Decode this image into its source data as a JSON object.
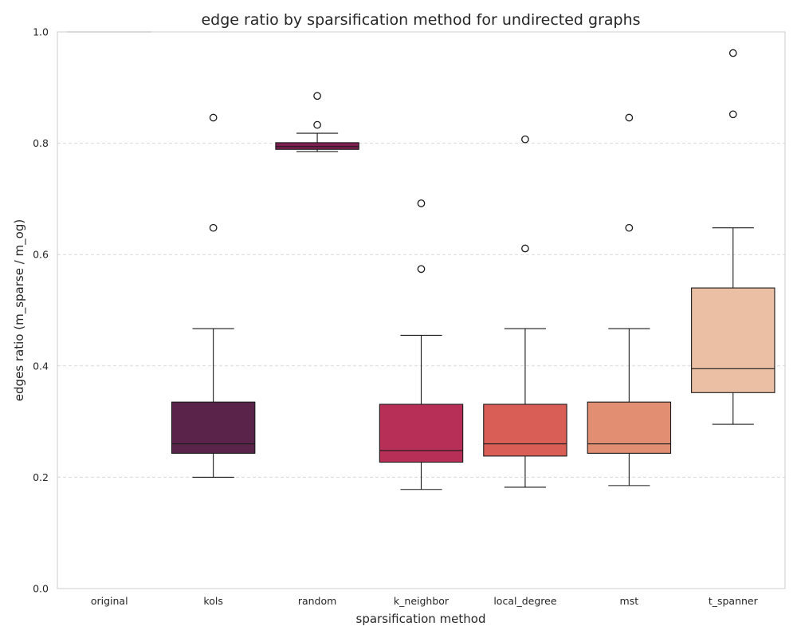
{
  "chart_data": {
    "type": "box",
    "title": "edge ratio by sparsification method for undirected graphs",
    "xlabel": "sparsification method",
    "ylabel": "edges ratio (m_sparse / m_og)",
    "ylim": [
      0,
      1
    ],
    "yticks": [
      "0.0",
      "0.2",
      "0.4",
      "0.6",
      "0.8",
      "1.0"
    ],
    "grid": "horizontal dashed",
    "categories": [
      "original",
      "kols",
      "random",
      "k_neighbor",
      "local_degree",
      "mst",
      "t_spanner"
    ],
    "boxes": [
      {
        "name": "original",
        "whisker_low": 1.0,
        "q1": 1.0,
        "median": 1.0,
        "q3": 1.0,
        "whisker_high": 1.0,
        "fliers": [],
        "color": "#888888"
      },
      {
        "name": "kols",
        "whisker_low": 0.2,
        "q1": 0.243,
        "median": 0.26,
        "q3": 0.335,
        "whisker_high": 0.467,
        "fliers": [
          0.648,
          0.846
        ],
        "color": "#5a244a"
      },
      {
        "name": "random",
        "whisker_low": 0.785,
        "q1": 0.789,
        "median": 0.794,
        "q3": 0.801,
        "whisker_high": 0.818,
        "fliers": [
          0.833,
          0.885
        ],
        "color": "#7f1e51"
      },
      {
        "name": "k_neighbor",
        "whisker_low": 0.178,
        "q1": 0.227,
        "median": 0.248,
        "q3": 0.331,
        "whisker_high": 0.455,
        "fliers": [
          0.574,
          0.692
        ],
        "color": "#b72f57"
      },
      {
        "name": "local_degree",
        "whisker_low": 0.182,
        "q1": 0.238,
        "median": 0.26,
        "q3": 0.331,
        "whisker_high": 0.467,
        "fliers": [
          0.611,
          0.807
        ],
        "color": "#d95f56"
      },
      {
        "name": "mst",
        "whisker_low": 0.185,
        "q1": 0.243,
        "median": 0.26,
        "q3": 0.335,
        "whisker_high": 0.467,
        "fliers": [
          0.648,
          0.846
        ],
        "color": "#e28e73"
      },
      {
        "name": "t_spanner",
        "whisker_low": 0.295,
        "q1": 0.352,
        "median": 0.395,
        "q3": 0.54,
        "whisker_high": 0.648,
        "fliers": [
          0.852,
          0.962
        ],
        "color": "#ebbfa3"
      }
    ]
  }
}
